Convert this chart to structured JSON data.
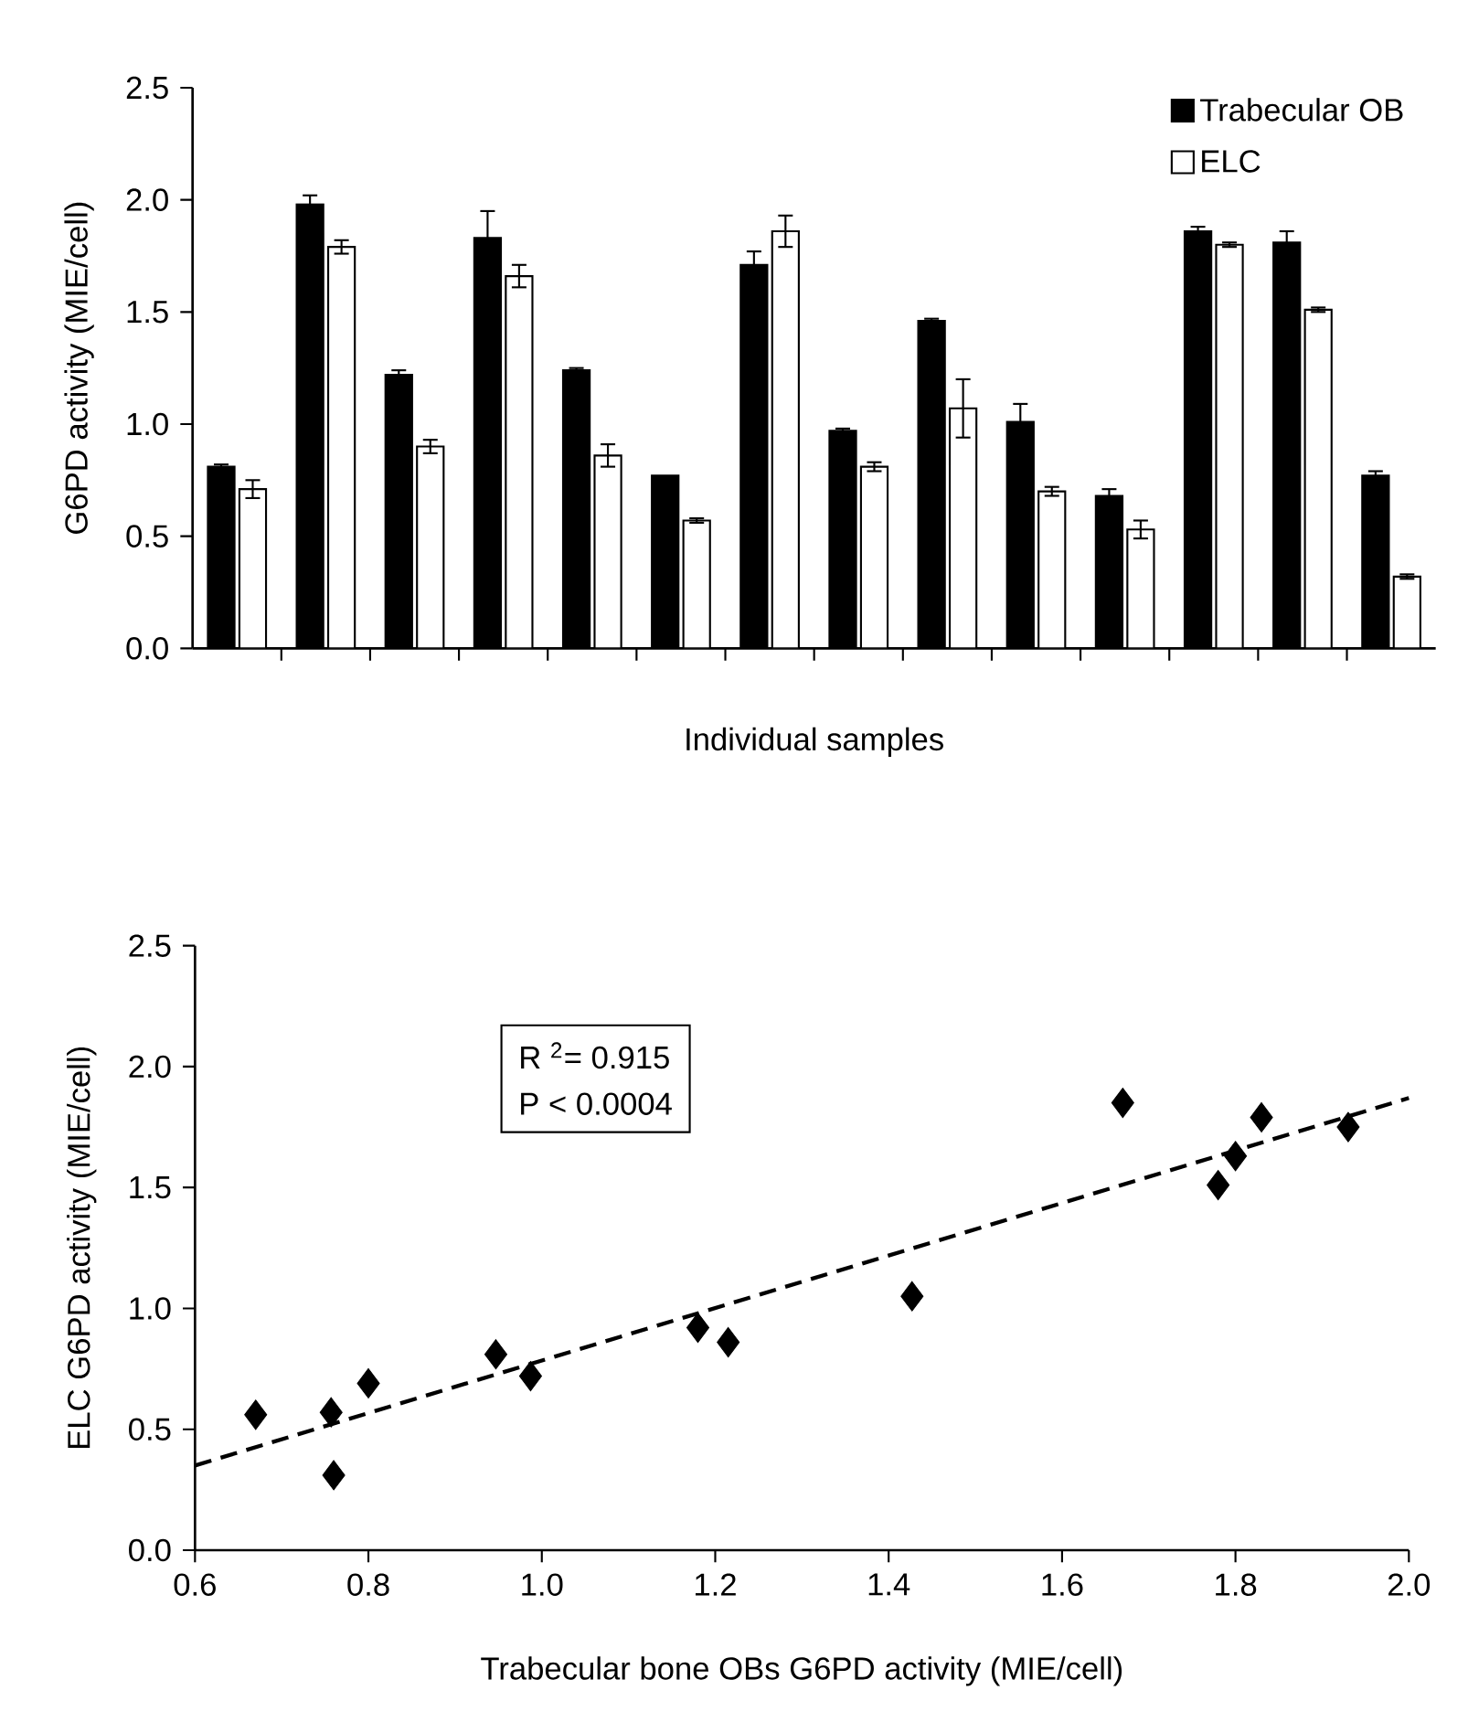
{
  "chart_data": [
    {
      "type": "bar",
      "xlabel": "Individual samples",
      "ylabel": "G6PD activity (MIE/cell)",
      "categories": [
        null,
        null,
        null,
        null,
        null,
        null,
        null,
        null,
        null,
        null,
        null,
        null,
        null,
        null
      ],
      "series": [
        {
          "name": "Trabecular OB",
          "color": "#000000",
          "values": [
            0.81,
            1.98,
            1.22,
            1.83,
            1.24,
            0.77,
            1.71,
            0.97,
            1.46,
            1.01,
            0.68,
            1.86,
            1.81,
            0.77
          ],
          "errors": [
            0.01,
            0.04,
            0.02,
            0.12,
            0.01,
            null,
            0.06,
            0.01,
            0.01,
            0.08,
            0.03,
            0.02,
            0.05,
            0.02
          ]
        },
        {
          "name": "ELC",
          "color": "#ffffff",
          "values": [
            0.71,
            1.79,
            0.9,
            1.66,
            0.86,
            0.57,
            1.86,
            0.81,
            1.07,
            0.7,
            0.53,
            1.8,
            1.51,
            0.32
          ],
          "errors": [
            0.04,
            0.03,
            0.03,
            0.05,
            0.05,
            0.01,
            0.07,
            0.02,
            0.13,
            0.02,
            0.04,
            0.01,
            0.01,
            0.01
          ]
        }
      ],
      "ylim": [
        0,
        2.5
      ],
      "yticks": [
        {
          "value": 0,
          "label": "0.0"
        },
        {
          "value": 0.5,
          "label": "0.5"
        },
        {
          "value": 1,
          "label": "1.0"
        },
        {
          "value": 1.5,
          "label": "1.5"
        },
        {
          "value": 2,
          "label": "2.0"
        },
        {
          "value": 2.5,
          "label": "2.5"
        }
      ],
      "legend": "top right",
      "tick_labels": "y"
    },
    {
      "type": "scatter",
      "xlabel": "Trabecular bone OBs G6PD activity (MIE/cell)",
      "ylabel": "ELC G6PD activity (MIE/cell)",
      "series": [
        {
          "type": "scatter",
          "color": "#000000",
          "marker": "diamond",
          "x": [
            0.67,
            0.757,
            0.76,
            0.8,
            0.947,
            0.987,
            1.18,
            1.215,
            1.427,
            1.67,
            1.78,
            1.8,
            1.83,
            1.93
          ],
          "values": [
            0.56,
            0.57,
            0.31,
            0.69,
            0.81,
            0.72,
            0.92,
            0.86,
            1.05,
            1.85,
            1.51,
            1.63,
            1.79,
            1.75
          ]
        },
        {
          "type": "line",
          "color": "#000000",
          "line_style": "dashed",
          "x": [
            0.6,
            2.0
          ],
          "values": [
            0.35,
            1.87
          ]
        }
      ],
      "xlim": [
        0.6,
        2.0
      ],
      "xticks": [
        {
          "value": 0.6,
          "label": "0.6"
        },
        {
          "value": 0.8,
          "label": "0.8"
        },
        {
          "value": 1,
          "label": "1.0"
        },
        {
          "value": 1.2,
          "label": "1.2"
        },
        {
          "value": 1.4,
          "label": "1.4"
        },
        {
          "value": 1.6,
          "label": "1.6"
        },
        {
          "value": 1.8,
          "label": "1.8"
        },
        {
          "value": 2,
          "label": "2.0"
        }
      ],
      "ylim": [
        0,
        2.5
      ],
      "yticks": [
        {
          "value": 0,
          "label": "0.0"
        },
        {
          "value": 0.5,
          "label": "0.5"
        },
        {
          "value": 1,
          "label": "1.0"
        },
        {
          "value": 1.5,
          "label": "1.5"
        },
        {
          "value": 2,
          "label": "2.0"
        },
        {
          "value": 2.5,
          "label": "2.5"
        }
      ],
      "annotations": [
        "R $^{2}$= 0.915",
        "P < 0.0004"
      ]
    }
  ]
}
